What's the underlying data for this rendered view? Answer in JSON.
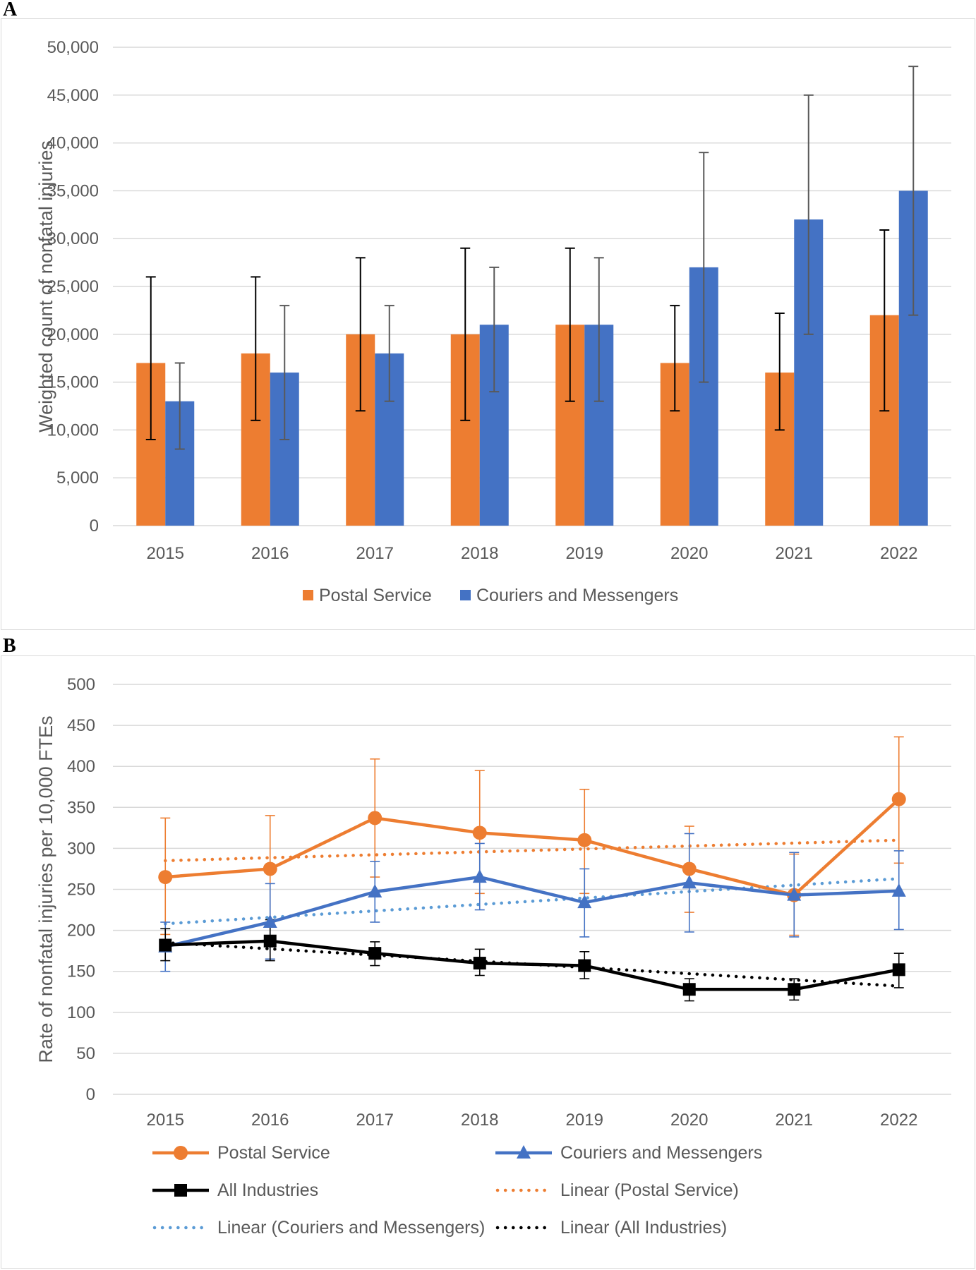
{
  "panels": {
    "a_label": "A",
    "b_label": "B"
  },
  "colors": {
    "postal": "#ed7d31",
    "couriers": "#4472c4",
    "all": "#000000",
    "trend_postal": "#ed7d31",
    "trend_couriers": "#5b9bd5",
    "trend_all": "#000000",
    "grid": "#d9d9d9",
    "text": "#595959",
    "err_dark": "#000000",
    "err_grey": "#595959"
  },
  "chart_data": [
    {
      "type": "bar",
      "panel": "A",
      "title": "",
      "xlabel": "",
      "ylabel": "Weighted count of nonfatal injuries",
      "ylim": [
        0,
        50000
      ],
      "yticks": [
        "0",
        "5,000",
        "10,000",
        "15,000",
        "20,000",
        "25,000",
        "30,000",
        "35,000",
        "40,000",
        "45,000",
        "50,000"
      ],
      "ytick_values": [
        0,
        5000,
        10000,
        15000,
        20000,
        25000,
        30000,
        35000,
        40000,
        45000,
        50000
      ],
      "categories": [
        "2015",
        "2016",
        "2017",
        "2018",
        "2019",
        "2020",
        "2021",
        "2022"
      ],
      "grid": true,
      "legend_position": "bottom",
      "series": [
        {
          "name": "Postal Service",
          "color": "#ed7d31",
          "values": [
            17000,
            18000,
            20000,
            20000,
            21000,
            17000,
            16000,
            22000
          ],
          "err_low": [
            9000,
            11000,
            12000,
            11000,
            13000,
            12000,
            10000,
            12000
          ],
          "err_high": [
            26000,
            26000,
            28000,
            29000,
            29000,
            23000,
            22200,
            30900
          ]
        },
        {
          "name": "Couriers and Messengers",
          "color": "#4472c4",
          "values": [
            13000,
            16000,
            18000,
            21000,
            21000,
            27000,
            32000,
            35000
          ],
          "err_low": [
            8000,
            9000,
            13000,
            14000,
            13000,
            15000,
            20000,
            22000
          ],
          "err_high": [
            17000,
            23000,
            23000,
            27000,
            28000,
            39000,
            45000,
            48000
          ]
        }
      ]
    },
    {
      "type": "line",
      "panel": "B",
      "title": "",
      "xlabel": "",
      "ylabel": "Rate of nonfatal injuries per 10,000 FTEs",
      "ylim": [
        0,
        500
      ],
      "yticks": [
        "0",
        "50",
        "100",
        "150",
        "200",
        "250",
        "300",
        "350",
        "400",
        "450",
        "500"
      ],
      "ytick_values": [
        0,
        50,
        100,
        150,
        200,
        250,
        300,
        350,
        400,
        450,
        500
      ],
      "categories": [
        "2015",
        "2016",
        "2017",
        "2018",
        "2019",
        "2020",
        "2021",
        "2022"
      ],
      "grid": true,
      "legend_position": "bottom",
      "series": [
        {
          "name": "Postal Service",
          "marker": "circle",
          "color": "#ed7d31",
          "values": [
            265,
            275,
            337,
            319,
            310,
            275,
            243,
            360
          ],
          "err_low": [
            195,
            210,
            265,
            245,
            245,
            222,
            194,
            282
          ],
          "err_high": [
            337,
            340,
            409,
            395,
            372,
            327,
            293,
            436
          ]
        },
        {
          "name": "Couriers and Messengers",
          "marker": "triangle",
          "color": "#4472c4",
          "values": [
            180,
            210,
            247,
            265,
            234,
            258,
            243,
            248
          ],
          "err_low": [
            150,
            165,
            210,
            225,
            192,
            198,
            192,
            201
          ],
          "err_high": [
            210,
            257,
            284,
            306,
            275,
            318,
            295,
            297
          ]
        },
        {
          "name": "All Industries",
          "marker": "square",
          "color": "#000000",
          "values": [
            182,
            187,
            172,
            160,
            157,
            128,
            128,
            152
          ],
          "err_low": [
            163,
            163,
            157,
            145,
            141,
            114,
            115,
            130
          ],
          "err_high": [
            202,
            213,
            186,
            177,
            174,
            141,
            141,
            172
          ]
        }
      ],
      "trendlines": [
        {
          "name": "Linear (Postal Service)",
          "color": "#ed7d31",
          "start": 285,
          "end": 310
        },
        {
          "name": "Linear (Couriers and Messengers)",
          "color": "#5b9bd5",
          "start": 208,
          "end": 263
        },
        {
          "name": "Linear (All Industries)",
          "color": "#000000",
          "start": 185,
          "end": 132
        }
      ]
    }
  ]
}
